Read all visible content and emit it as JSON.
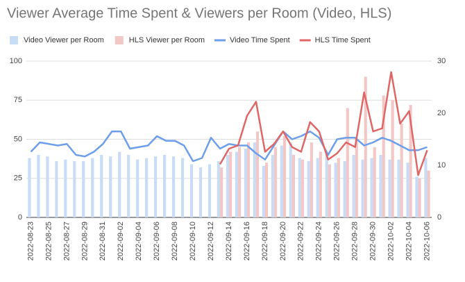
{
  "chart_data": {
    "type": "combo",
    "title": "Viewer Average Time Spent & Viewers per Room (Video, HLS)",
    "categories": [
      "2022-08-23",
      null,
      "2022-08-25",
      null,
      "2022-08-27",
      null,
      "2022-08-29",
      null,
      "2022-08-31",
      null,
      "2022-09-02",
      null,
      "2022-09-04",
      null,
      "2022-09-06",
      null,
      "2022-09-08",
      null,
      "2022-09-10",
      null,
      "2022-09-12",
      null,
      "2022-09-14",
      null,
      "2022-09-16",
      null,
      "2022-09-18",
      null,
      "2022-09-20",
      null,
      "2022-09-22",
      null,
      "2022-09-24",
      null,
      "2022-09-26",
      null,
      "2022-09-28",
      null,
      "2022-09-30",
      null,
      "2022-10-02",
      null,
      "2022-10-04",
      null,
      "2022-10-06"
    ],
    "ylim": [
      0,
      100
    ],
    "yticks": [
      0,
      25,
      50,
      75,
      100
    ],
    "y2lim": [
      0,
      30
    ],
    "y2ticks": [
      0,
      10,
      20,
      30
    ],
    "grid": true,
    "legend": "top",
    "series": [
      {
        "name": "Video Viewer per Room",
        "type": "bar",
        "color": "#c9dcf5",
        "values": [
          38,
          40,
          39,
          36,
          37,
          36,
          36,
          38,
          40,
          39,
          42,
          40,
          37,
          38,
          39,
          40,
          39,
          38,
          34,
          32,
          34,
          36,
          40,
          42,
          44,
          48,
          33,
          40,
          46,
          48,
          38,
          36,
          38,
          42,
          35,
          36,
          40,
          37,
          38,
          40,
          37,
          37,
          35,
          26,
          38
        ]
      },
      {
        "name": "HLS Viewer per Room",
        "type": "bar",
        "color": "#f4c7c7",
        "values": [
          null,
          null,
          null,
          null,
          null,
          null,
          null,
          null,
          null,
          null,
          null,
          null,
          null,
          null,
          null,
          null,
          null,
          null,
          null,
          null,
          null,
          32,
          42,
          45,
          48,
          55,
          35,
          45,
          52,
          40,
          37,
          48,
          42,
          34,
          38,
          70,
          50,
          90,
          45,
          78,
          75,
          60,
          72,
          25,
          30
        ]
      },
      {
        "name": "Video Time Spent",
        "type": "line",
        "axis": "y2",
        "color": "#6d9eeb",
        "values": [
          12.6,
          14.4,
          14.1,
          13.8,
          14.1,
          12,
          11.7,
          12.6,
          14.1,
          16.5,
          16.5,
          13.2,
          13.5,
          13.8,
          15.6,
          14.7,
          14.7,
          13.8,
          10.8,
          11.4,
          15.3,
          13.2,
          14.1,
          13.8,
          13.8,
          12.3,
          11.1,
          13.8,
          16.5,
          15,
          15.6,
          16.5,
          15.3,
          12,
          15,
          15.3,
          15.3,
          13.8,
          14.4,
          15.3,
          14.7,
          13.8,
          12.9,
          12.9,
          13.5
        ]
      },
      {
        "name": "HLS Time Spent",
        "type": "line",
        "axis": "y2",
        "color": "#e06666",
        "values": [
          null,
          null,
          null,
          null,
          null,
          null,
          null,
          null,
          null,
          null,
          null,
          null,
          null,
          null,
          null,
          null,
          null,
          null,
          null,
          null,
          null,
          10.2,
          13.2,
          13.8,
          19.5,
          22.2,
          12.6,
          14.1,
          16.5,
          13.5,
          12.6,
          18.3,
          16.5,
          11.1,
          12.3,
          14.4,
          13.5,
          24,
          16.5,
          17.1,
          27.9,
          18,
          20.4,
          8.1,
          12.9
        ]
      }
    ]
  }
}
